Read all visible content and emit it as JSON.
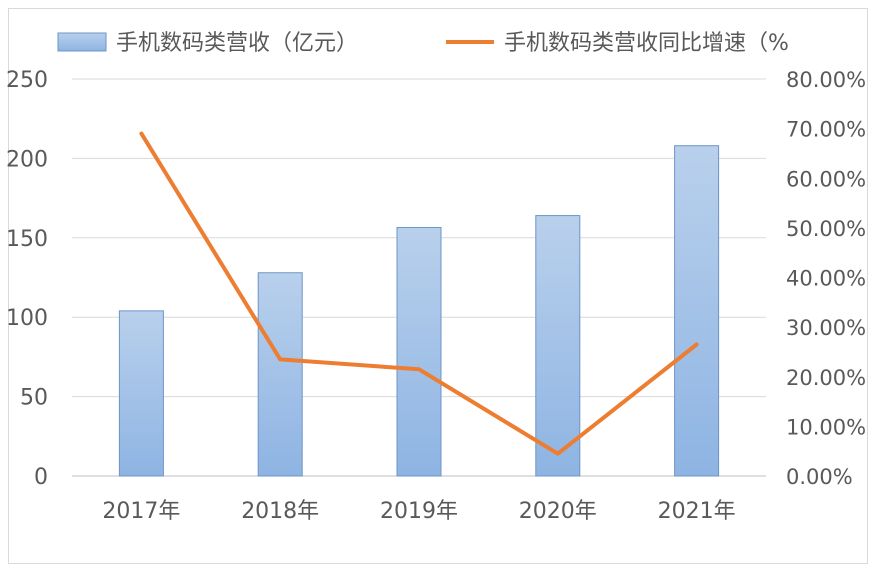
{
  "chart_data": {
    "type": "bar",
    "categories": [
      "2017年",
      "2018年",
      "2019年",
      "2020年",
      "2021年"
    ],
    "series": [
      {
        "name": "手机数码类营收（亿元）",
        "type": "bar",
        "axis": "left",
        "color": "#8eb4e3",
        "values": [
          104,
          128,
          156.5,
          164,
          208
        ]
      },
      {
        "name": "手机数码类营收同比增速（%",
        "type": "line",
        "axis": "right",
        "color": "#ed7d31",
        "values": [
          0.69,
          0.235,
          0.215,
          0.045,
          0.265
        ]
      }
    ],
    "y_left": {
      "ylim": [
        0,
        250
      ],
      "ticks": [
        "0",
        "50",
        "100",
        "150",
        "200",
        "250"
      ]
    },
    "y_right": {
      "ylim": [
        0,
        0.8
      ],
      "ticks": [
        "0.00%",
        "10.00%",
        "20.00%",
        "30.00%",
        "40.00%",
        "50.00%",
        "60.00%",
        "70.00%",
        "80.00%"
      ]
    },
    "grid": true,
    "legend": "top"
  }
}
